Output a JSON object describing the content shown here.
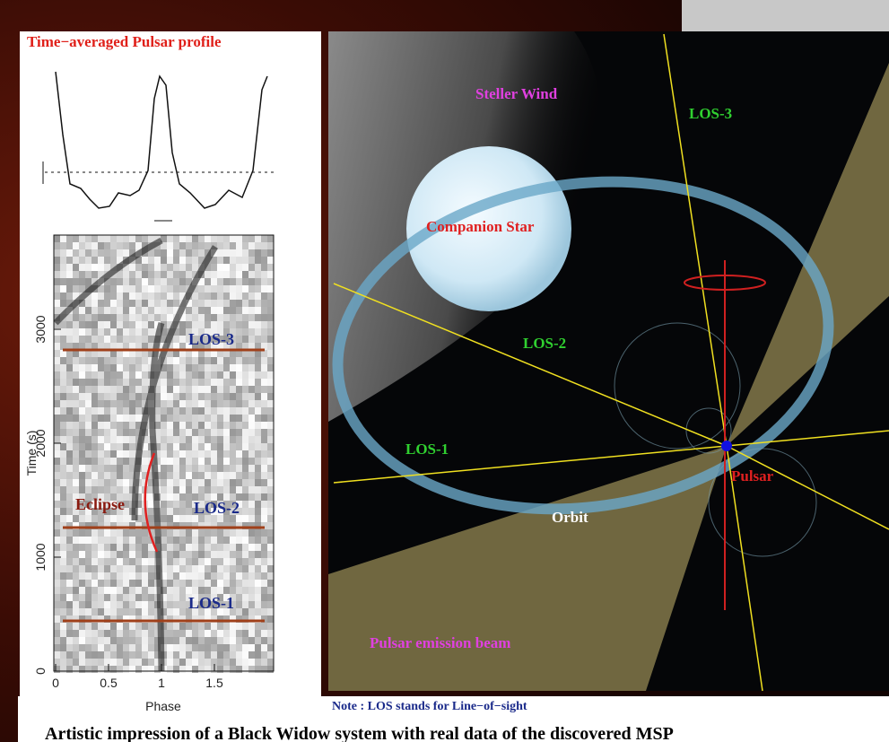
{
  "left_panel": {
    "title": "Time−averaged Pulsar profile",
    "y_axis_label": "Time (s)",
    "x_axis_label": "Phase",
    "y_ticks": [
      0,
      1000,
      2000,
      3000
    ],
    "x_ticks": [
      0,
      0.5,
      1,
      1.5
    ],
    "labels": {
      "los3": "LOS-3",
      "eclipse": "Eclipse",
      "los2": "LOS-2",
      "los1": "LOS-1"
    }
  },
  "right_panel": {
    "labels": {
      "wind": "Steller Wind",
      "los3": "LOS-3",
      "companion": "Companion Star",
      "los2": "LOS-2",
      "los1": "LOS-1",
      "pulsar": "Pulsar",
      "orbit": "Orbit",
      "beam": "Pulsar emission beam"
    }
  },
  "note": "Note : LOS stands for Line−of−sight",
  "caption": "Artistic impression of a Black Widow system with real data of the discovered MSP"
}
